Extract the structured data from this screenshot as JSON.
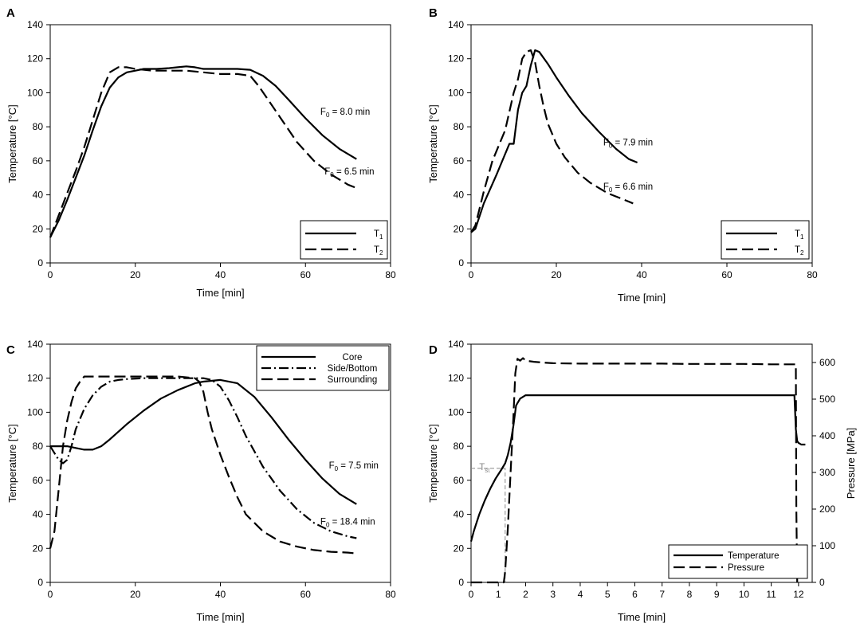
{
  "chart_data": [
    {
      "panel": "A",
      "type": "line",
      "xlabel": "Time [min]",
      "ylabel": "Temperature [°C]",
      "xlim": [
        0,
        80
      ],
      "ylim": [
        0,
        140
      ],
      "xticks": [
        0,
        20,
        40,
        60,
        80
      ],
      "yticks": [
        0,
        20,
        40,
        60,
        80,
        100,
        120,
        140
      ],
      "legend_position": "bottom-right",
      "series": [
        {
          "name": "T1",
          "label_main": "T",
          "label_sub": "1",
          "style": "solid",
          "x": [
            0,
            2,
            4,
            6,
            8,
            10,
            12,
            14,
            16,
            18,
            20,
            22,
            25,
            28,
            30,
            32,
            34,
            36,
            40,
            44,
            47,
            50,
            53,
            56,
            60,
            64,
            68,
            72
          ],
          "y": [
            15,
            25,
            37,
            50,
            63,
            78,
            92,
            103,
            109,
            112,
            113,
            114,
            114,
            114.5,
            115,
            115.5,
            115,
            114,
            114,
            114,
            113.5,
            110,
            104,
            96,
            85,
            75,
            67,
            61
          ]
        },
        {
          "name": "T2",
          "label_main": "T",
          "label_sub": "2",
          "style": "dashed",
          "x": [
            0,
            2,
            4,
            6,
            8,
            10,
            12,
            14,
            16,
            18,
            20,
            24,
            28,
            32,
            36,
            40,
            44,
            47,
            49,
            52,
            55,
            58,
            62,
            66,
            70,
            72
          ],
          "y": [
            15,
            28,
            41,
            54,
            68,
            84,
            100,
            112,
            115,
            115,
            114,
            113,
            113,
            113,
            112,
            111,
            111,
            110,
            104,
            93,
            82,
            71,
            60,
            52,
            46,
            44
          ]
        }
      ],
      "annotations": [
        {
          "main": "F",
          "sub": "0",
          "text": " = 8.0 min",
          "x": 63.5,
          "y": 87
        },
        {
          "main": "F",
          "sub": "0",
          "text": " = 6.5 min",
          "x": 64.5,
          "y": 52
        }
      ]
    },
    {
      "panel": "B",
      "type": "line",
      "xlabel": "Time [min]",
      "ylabel": "Temperature [°C]",
      "xlim": [
        0,
        80
      ],
      "ylim": [
        0,
        140
      ],
      "xticks": [
        0,
        20,
        40,
        60,
        80
      ],
      "yticks": [
        0,
        20,
        40,
        60,
        80,
        100,
        120,
        140
      ],
      "legend_position": "bottom-right",
      "series": [
        {
          "name": "T1",
          "label_main": "T",
          "label_sub": "1",
          "style": "solid",
          "x": [
            0,
            1,
            3,
            6,
            9,
            10,
            11,
            12,
            13,
            14,
            15,
            16,
            18,
            20,
            23,
            26,
            30,
            34,
            37,
            39
          ],
          "y": [
            18,
            20,
            35,
            52,
            70,
            70,
            90,
            100,
            104,
            116,
            125,
            124,
            117,
            109,
            98,
            88,
            77,
            67,
            61,
            59
          ]
        },
        {
          "name": "T2",
          "label_main": "T",
          "label_sub": "2",
          "style": "dashed",
          "x": [
            0,
            1,
            3,
            5,
            8,
            10,
            11,
            12,
            13,
            14,
            15,
            16,
            17,
            18,
            20,
            22,
            25,
            28,
            32,
            35,
            38
          ],
          "y": [
            18,
            22,
            42,
            60,
            78,
            100,
            108,
            120,
            124,
            125,
            118,
            104,
            92,
            82,
            70,
            62,
            53,
            47,
            41,
            38,
            35
          ]
        }
      ],
      "annotations": [
        {
          "main": "F",
          "sub": "0",
          "text": " = 7.9 min",
          "x": 31,
          "y": 69
        },
        {
          "main": "F",
          "sub": "0",
          "text": " = 6.6 min",
          "x": 31,
          "y": 43
        }
      ]
    },
    {
      "panel": "C",
      "type": "line",
      "xlabel": "Time [min]",
      "ylabel": "Temperature [°C]",
      "xlim": [
        0,
        80
      ],
      "ylim": [
        0,
        140
      ],
      "xticks": [
        0,
        20,
        40,
        60,
        80
      ],
      "yticks": [
        0,
        20,
        40,
        60,
        80,
        100,
        120,
        140
      ],
      "legend_position": "top-right",
      "series": [
        {
          "name": "Core",
          "style": "solid",
          "x": [
            0,
            2,
            4,
            6,
            8,
            10,
            12,
            14,
            18,
            22,
            26,
            30,
            34,
            36,
            40,
            44,
            48,
            52,
            56,
            60,
            64,
            68,
            72
          ],
          "y": [
            80,
            80,
            80,
            79,
            78,
            78,
            80,
            84,
            93,
            101,
            108,
            113,
            117,
            118,
            119,
            117,
            109,
            97,
            84,
            72,
            61,
            52,
            46
          ]
        },
        {
          "name": "Side/Bottom",
          "style": "dashdot",
          "x": [
            0,
            1,
            2,
            3,
            4,
            5,
            6,
            8,
            10,
            12,
            14,
            16,
            18,
            22,
            26,
            30,
            34,
            36,
            38,
            40,
            42,
            44,
            46,
            50,
            54,
            58,
            62,
            66,
            70,
            72
          ],
          "y": [
            80,
            76,
            72,
            70,
            72,
            80,
            90,
            102,
            110,
            115,
            118,
            119,
            119.5,
            120,
            120,
            120,
            120,
            120,
            119,
            115,
            107,
            97,
            86,
            68,
            54,
            43,
            35,
            30,
            27,
            26
          ]
        },
        {
          "name": "Surrounding",
          "style": "dashed",
          "x": [
            0,
            1,
            2,
            3,
            4,
            5,
            6,
            7,
            8,
            10,
            14,
            20,
            26,
            30,
            34,
            35,
            36,
            37,
            38,
            40,
            42,
            44,
            46,
            50,
            54,
            58,
            62,
            66,
            70,
            72
          ],
          "y": [
            20,
            30,
            55,
            80,
            95,
            106,
            114,
            118,
            121,
            121,
            121,
            121,
            121,
            121,
            120,
            118,
            112,
            100,
            90,
            75,
            62,
            50,
            40,
            30,
            24,
            21,
            19,
            18,
            17.5,
            17
          ]
        }
      ],
      "annotations": [
        {
          "main": "F",
          "sub": "0",
          "text": " = 7.5 min",
          "x": 65.5,
          "y": 67
        },
        {
          "main": "F",
          "sub": "0",
          "text": " = 18.4 min",
          "x": 63.5,
          "y": 34
        }
      ]
    },
    {
      "panel": "D",
      "type": "line",
      "xlabel": "Time [min]",
      "ylabel": "Temperature [°C]",
      "ylabel_right": "Pressure [MPa]",
      "xlim": [
        0,
        12.5
      ],
      "ylim": [
        0,
        140
      ],
      "ylim_right": [
        0,
        650
      ],
      "xticks": [
        0,
        1,
        2,
        3,
        4,
        5,
        6,
        7,
        8,
        9,
        10,
        11,
        12
      ],
      "yticks": [
        0,
        20,
        40,
        60,
        80,
        100,
        120,
        140
      ],
      "yticks_right": [
        0,
        100,
        200,
        300,
        400,
        500,
        600
      ],
      "legend_position": "bottom-right",
      "series": [
        {
          "name": "Temperature",
          "style": "solid",
          "axis": "left",
          "x": [
            0,
            0.1,
            0.3,
            0.5,
            0.7,
            0.9,
            1.1,
            1.25,
            1.35,
            1.45,
            1.55,
            1.65,
            1.8,
            2.0,
            2.5,
            4,
            6,
            8,
            10,
            11.85,
            11.9,
            11.95,
            12.0,
            12.1,
            12.25
          ],
          "y": [
            24,
            30,
            40,
            48,
            55,
            61,
            66,
            70,
            75,
            82,
            92,
            104,
            108,
            110,
            110,
            110,
            110,
            110,
            110,
            110,
            90,
            83,
            82,
            81,
            81
          ]
        },
        {
          "name": "Pressure",
          "style": "dashed",
          "axis": "right",
          "x": [
            0,
            1.2,
            1.25,
            1.35,
            1.45,
            1.55,
            1.62,
            1.7,
            1.8,
            1.9,
            2.0,
            2.3,
            2.6,
            3,
            4,
            5,
            6,
            7,
            8,
            9,
            10,
            11,
            11.9,
            11.92,
            11.95
          ],
          "y": [
            0,
            0,
            30,
            150,
            300,
            450,
            570,
            610,
            605,
            612,
            605,
            602,
            600,
            598,
            597,
            597,
            597,
            597,
            596,
            596,
            596,
            595,
            595,
            200,
            0
          ]
        }
      ],
      "annotations": [
        {
          "main": "T",
          "sub": "st",
          "text": "",
          "x": 0.3,
          "y": 66,
          "color": "#888888"
        }
      ],
      "reference_lines": {
        "x": 1.25,
        "y": 67,
        "color": "#888888",
        "style": "dashed"
      }
    }
  ],
  "colors": {
    "line": "#000000",
    "reference": "#888888",
    "background": "#ffffff"
  }
}
